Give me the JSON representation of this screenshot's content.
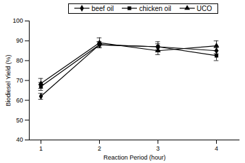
{
  "chart_data": {
    "type": "line",
    "x_label": "Reaction Period (hour)",
    "y_label": "Biodiesel Yield (%)",
    "x": [
      1,
      2,
      3,
      4
    ],
    "xlim": [
      0.8,
      4.4
    ],
    "xticks": [
      1,
      2,
      3,
      4
    ],
    "ylim": [
      40,
      100
    ],
    "yticks": [
      40,
      50,
      60,
      70,
      80,
      90,
      100
    ],
    "grid": false,
    "legend": "top",
    "series": [
      {
        "name": "beef oil",
        "color": "#000000",
        "marker": "diamond",
        "line_style": "solid",
        "values": [
          62,
          88,
          87,
          85
        ],
        "errors": [
          1.5,
          1.5,
          1.5,
          1.5
        ]
      },
      {
        "name": "chicken oil",
        "color": "#000000",
        "marker": "square",
        "line_style": "solid",
        "values": [
          67,
          88,
          87,
          82.5
        ],
        "errors": [
          2,
          1.5,
          2.5,
          2.5
        ]
      },
      {
        "name": "UCO",
        "color": "#000000",
        "marker": "triangle",
        "line_style": "solid",
        "values": [
          68.5,
          89,
          85,
          87.5
        ],
        "errors": [
          2.5,
          2.5,
          2,
          2.5
        ]
      }
    ]
  }
}
